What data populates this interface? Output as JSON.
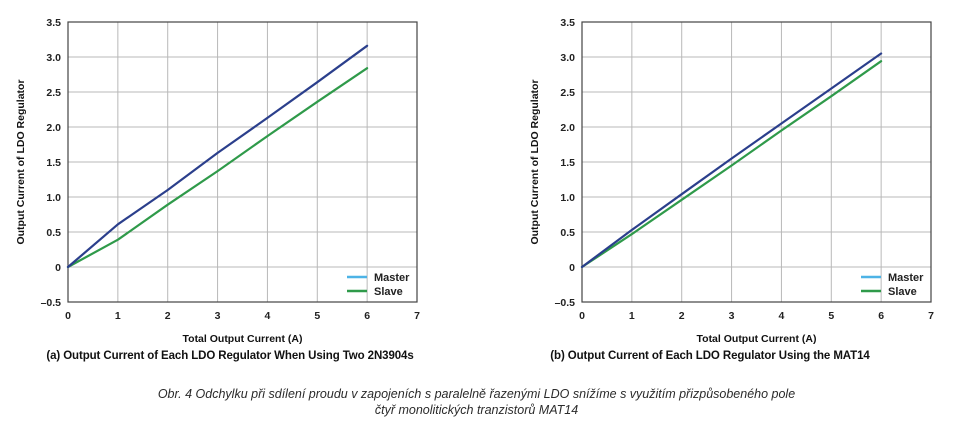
{
  "chart_data": [
    {
      "type": "line",
      "title": "(a) Output Current of Each LDO Regulator When Using Two 2N3904s",
      "xlabel": "Total Output Current (A)",
      "ylabel": "Output Current of LDO Regulator",
      "xlim": [
        0,
        7
      ],
      "ylim": [
        -0.5,
        3.5
      ],
      "xticks": [
        "0",
        "1",
        "2",
        "3",
        "4",
        "5",
        "6",
        "7"
      ],
      "yticks": [
        "–0.5",
        "0",
        "0.5",
        "1.0",
        "1.5",
        "2.0",
        "2.5",
        "3.0",
        "3.5"
      ],
      "grid": true,
      "legend_position": "bottom-right",
      "series": [
        {
          "name": "Master",
          "color": "#2b3f8c",
          "legend_color": "#4db3e6",
          "x": [
            0,
            1,
            2,
            3,
            4,
            5,
            6
          ],
          "y": [
            0,
            0.61,
            1.1,
            1.63,
            2.13,
            2.64,
            3.16
          ]
        },
        {
          "name": "Slave",
          "color": "#2f9a4a",
          "legend_color": "#2f9a4a",
          "x": [
            0,
            1,
            2,
            3,
            4,
            5,
            6
          ],
          "y": [
            0,
            0.39,
            0.89,
            1.37,
            1.87,
            2.36,
            2.84
          ]
        }
      ]
    },
    {
      "type": "line",
      "title": "(b) Output Current of Each LDO Regulator Using the MAT14",
      "xlabel": "Total Output Current (A)",
      "ylabel": "Output Current of LDO Regulator",
      "xlim": [
        0,
        7
      ],
      "ylim": [
        -0.5,
        3.5
      ],
      "xticks": [
        "0",
        "1",
        "2",
        "3",
        "4",
        "5",
        "6",
        "7"
      ],
      "yticks": [
        "–0.5",
        "0",
        "0.5",
        "1.0",
        "1.5",
        "2.0",
        "2.5",
        "3.0",
        "3.5"
      ],
      "grid": true,
      "legend_position": "bottom-right",
      "series": [
        {
          "name": "Master",
          "color": "#2b3f8c",
          "legend_color": "#4db3e6",
          "x": [
            0,
            1,
            2,
            3,
            4,
            5,
            6
          ],
          "y": [
            0,
            0.53,
            1.04,
            1.55,
            2.05,
            2.55,
            3.05
          ]
        },
        {
          "name": "Slave",
          "color": "#2f9a4a",
          "legend_color": "#2f9a4a",
          "x": [
            0,
            1,
            2,
            3,
            4,
            5,
            6
          ],
          "y": [
            0,
            0.47,
            0.96,
            1.45,
            1.95,
            2.44,
            2.94
          ]
        }
      ]
    }
  ],
  "figure_caption": {
    "line1": "Obr. 4  Odchylku při sdílení proudu v zapojeních s paralelně řazenými LDO snížíme s využitím přizpůsobeného pole",
    "line2": "čtyř monolitických tranzistorů MAT14"
  }
}
